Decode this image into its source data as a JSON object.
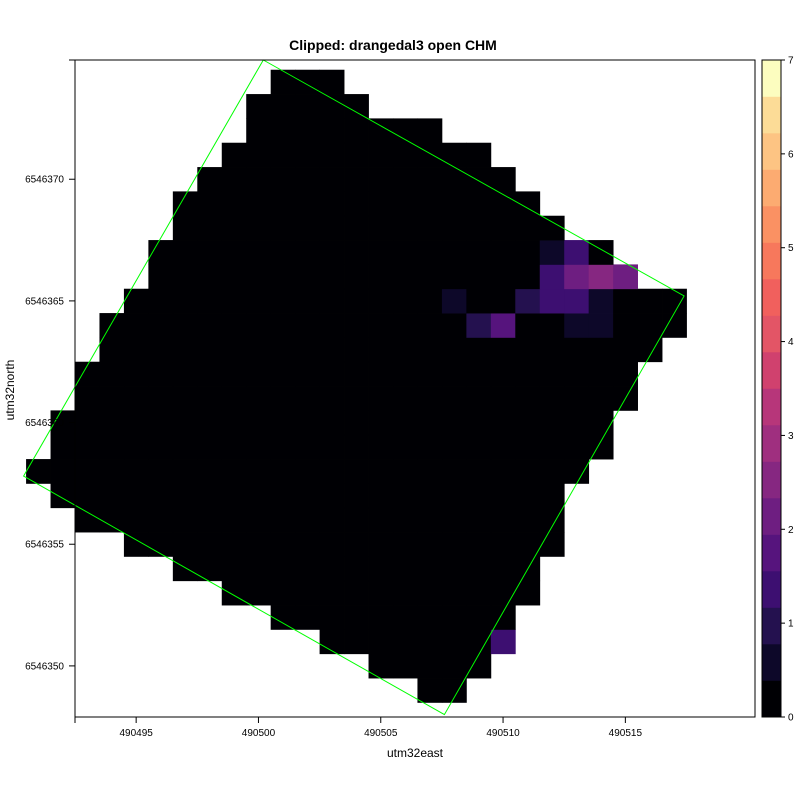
{
  "chart_data": {
    "type": "heatmap",
    "title": "Clipped: drangedal3 open CHM",
    "xlabel": "utm32east",
    "ylabel": "utm32north",
    "xlim": [
      490492.5,
      490520.3
    ],
    "ylim": [
      6546347.9,
      6546374.9
    ],
    "x_ticks": [
      "490495",
      "490500",
      "490505",
      "490510",
      "490515"
    ],
    "y_ticks": [
      "6546350",
      "6546355",
      "6546360",
      "6546365",
      "6546370"
    ],
    "colorbar": {
      "min": 0,
      "max": 7,
      "ticks": [
        "0",
        "1",
        "2",
        "3",
        "4",
        "5",
        "6",
        "7"
      ],
      "palette": [
        "#000004",
        "#0d0829",
        "#24114f",
        "#3d0f71",
        "#56147d",
        "#6e1e81",
        "#862781",
        "#9f2f7f",
        "#b7367a",
        "#d0416e",
        "#e35566",
        "#f1605d",
        "#f7785c",
        "#fa9163",
        "#fcab71",
        "#fdc483",
        "#fcdc97",
        "#fcfdbf"
      ]
    },
    "grid_x0": 490492,
    "grid_y0": 6546349,
    "cell_size": 1,
    "rows": [
      {
        "y": 6546349,
        "x_min": 490507,
        "x_max": 490508,
        "values": [
          0,
          0
        ]
      },
      {
        "y": 6546350,
        "x_min": 490505,
        "x_max": 490509,
        "values": [
          0,
          0,
          0,
          0,
          0
        ]
      },
      {
        "y": 6546351,
        "x_min": 490503,
        "x_max": 490510,
        "values": [
          0,
          0,
          0,
          0,
          0,
          0,
          0.2,
          1.5
        ]
      },
      {
        "y": 6546352,
        "x_min": 490501,
        "x_max": 490510,
        "values": [
          0,
          0,
          0,
          0,
          0,
          0,
          0,
          0,
          0,
          0
        ]
      },
      {
        "y": 6546353,
        "x_min": 490499,
        "x_max": 490511,
        "values": [
          0,
          0,
          0,
          0,
          0,
          0,
          0,
          0,
          0,
          0,
          0,
          0,
          0
        ]
      },
      {
        "y": 6546354,
        "x_min": 490497,
        "x_max": 490511,
        "values": [
          0,
          0,
          0,
          0,
          0,
          0,
          0,
          0,
          0,
          0,
          0,
          0,
          0,
          0,
          0
        ]
      },
      {
        "y": 6546355,
        "x_min": 490495,
        "x_max": 490512,
        "values": [
          0,
          0,
          0,
          0,
          0,
          0,
          0,
          0,
          0,
          0,
          0,
          0,
          0,
          0,
          0,
          0,
          0,
          0
        ]
      },
      {
        "y": 6546356,
        "x_min": 490493,
        "x_max": 490512,
        "values": [
          0,
          0,
          0,
          0,
          0,
          0,
          0,
          0,
          0,
          0,
          0,
          0,
          0,
          0,
          0,
          0,
          0,
          0.2,
          0.2,
          0
        ]
      },
      {
        "y": 6546357,
        "x_min": 490492,
        "x_max": 490512,
        "values": [
          0,
          0,
          0,
          0,
          0,
          0,
          0,
          0,
          0,
          0,
          0,
          0,
          0,
          0,
          0,
          0,
          0,
          0,
          0.3,
          0.3,
          0
        ]
      },
      {
        "y": 6546358,
        "x_min": 490491,
        "x_max": 490513,
        "values": [
          0,
          0,
          0.1,
          0.1,
          0,
          0,
          0,
          0,
          0,
          0,
          0,
          0,
          0,
          0,
          0,
          0,
          0,
          0,
          0,
          0.2,
          0.2,
          0,
          0
        ]
      },
      {
        "y": 6546359,
        "x_min": 490492,
        "x_max": 490514,
        "values": [
          0,
          0,
          0,
          0,
          0,
          0,
          0,
          0,
          0,
          0,
          0,
          0,
          0,
          0,
          0,
          0,
          0,
          0,
          0,
          0,
          0,
          0,
          0
        ]
      },
      {
        "y": 6546360,
        "x_min": 490492,
        "x_max": 490514,
        "values": [
          0,
          0,
          0,
          0,
          0,
          0,
          0,
          0,
          0,
          0,
          0,
          0,
          0,
          0,
          0,
          0,
          0,
          0,
          0,
          0,
          0,
          0,
          0
        ]
      },
      {
        "y": 6546361,
        "x_min": 490493,
        "x_max": 490515,
        "values": [
          0,
          0,
          0,
          0,
          0,
          0,
          0,
          0,
          0,
          0,
          0,
          0,
          0,
          0,
          0,
          0,
          0,
          0,
          0,
          0,
          0,
          0.1,
          0
        ]
      },
      {
        "y": 6546362,
        "x_min": 490493,
        "x_max": 490515,
        "values": [
          0,
          0,
          0,
          0,
          0,
          0,
          0,
          0,
          0,
          0,
          0,
          0,
          0,
          0,
          0,
          0,
          0,
          0,
          0,
          0,
          0,
          0.1,
          0.1
        ]
      },
      {
        "y": 6546363,
        "x_min": 490494,
        "x_max": 490516,
        "values": [
          0,
          0,
          0,
          0,
          0,
          0,
          0,
          0,
          0,
          0,
          0,
          0,
          0,
          0,
          0,
          0,
          0,
          0,
          0,
          0,
          0,
          0,
          0.1
        ]
      },
      {
        "y": 6546364,
        "x_min": 490494,
        "x_max": 490517,
        "values": [
          0,
          0,
          0,
          0,
          0,
          0,
          0,
          0,
          0,
          0,
          0,
          0,
          0,
          0,
          0,
          1,
          1.8,
          0.3,
          0.2,
          0.5,
          0.5,
          0,
          0,
          0
        ]
      },
      {
        "y": 6546365,
        "x_min": 490495,
        "x_max": 490517,
        "values": [
          0,
          0.2,
          0.2,
          0,
          0,
          0,
          0,
          0,
          0,
          0,
          0,
          0,
          0,
          0.5,
          0.3,
          0.3,
          0.8,
          1.2,
          1.5,
          0.5,
          0,
          0,
          0
        ]
      },
      {
        "y": 6546366,
        "x_min": 490496,
        "x_max": 490515,
        "values": [
          0,
          0,
          0,
          0,
          0,
          0,
          0,
          0,
          0,
          0,
          0,
          0,
          0,
          0,
          0,
          0,
          1.2,
          2.2,
          2.6,
          2
        ]
      },
      {
        "y": 6546367,
        "x_min": 490496,
        "x_max": 490514,
        "values": [
          0,
          0,
          0,
          0,
          0,
          0,
          0,
          0,
          0,
          0,
          0,
          0,
          0,
          0,
          0,
          0,
          0.5,
          1.5,
          0
        ]
      },
      {
        "y": 6546368,
        "x_min": 490497,
        "x_max": 490512,
        "values": [
          0,
          0,
          0,
          0,
          0,
          0,
          0,
          0,
          0,
          0,
          0,
          0,
          0,
          0,
          0,
          0
        ]
      },
      {
        "y": 6546369,
        "x_min": 490497,
        "x_max": 490511,
        "values": [
          0,
          0,
          0,
          0,
          0,
          0,
          0,
          0,
          0,
          0,
          0,
          0,
          0,
          0,
          0
        ]
      },
      {
        "y": 6546370,
        "x_min": 490498,
        "x_max": 490510,
        "values": [
          0,
          0,
          0,
          0,
          0,
          0,
          0,
          0,
          0,
          0,
          0,
          0.2,
          0
        ]
      },
      {
        "y": 6546371,
        "x_min": 490499,
        "x_max": 490509,
        "values": [
          0,
          0,
          0,
          0,
          0,
          0,
          0,
          0,
          0,
          0,
          0
        ]
      },
      {
        "y": 6546372,
        "x_min": 490500,
        "x_max": 490507,
        "values": [
          0,
          0,
          0,
          0,
          0,
          0,
          0,
          0
        ]
      },
      {
        "y": 6546373,
        "x_min": 490500,
        "x_max": 490504,
        "values": [
          0,
          0,
          0,
          0,
          0
        ]
      },
      {
        "y": 6546374,
        "x_min": 490501,
        "x_max": 490503,
        "values": [
          0,
          0,
          0
        ]
      }
    ],
    "boundary_polygon": {
      "color": "#00ff00",
      "points": [
        [
          490500.2,
          6546374.9
        ],
        [
          490517.4,
          6546365.2
        ],
        [
          490507.6,
          6546348.0
        ],
        [
          490490.4,
          6546357.8
        ]
      ]
    },
    "grid": false,
    "legend": "colorbar-right"
  }
}
